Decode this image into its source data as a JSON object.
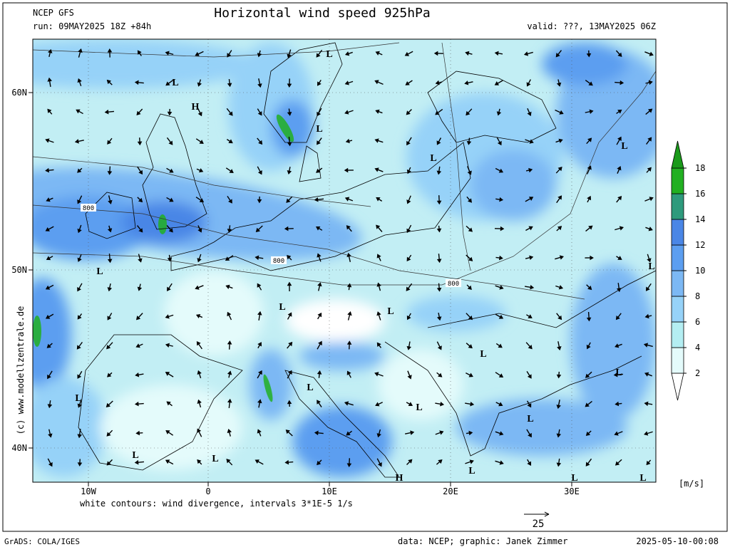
{
  "header": {
    "model": "NCEP GFS",
    "run": "run: 09MAY2025 18Z +84h",
    "title": "Horizontal wind speed 925hPa",
    "valid": "valid: ???, 13MAY2025 06Z"
  },
  "map": {
    "lat_labels": [
      "60N",
      "50N",
      "40N"
    ],
    "lon_labels": [
      "10W",
      "0",
      "10E",
      "20E",
      "30E"
    ],
    "pressure_centers": [
      "L",
      "H",
      "L",
      "L",
      "L",
      "L",
      "L",
      "L",
      "L",
      "L",
      "L",
      "L",
      "L",
      "L",
      "L",
      "L",
      "L",
      "H",
      "L",
      "L",
      "L",
      "L"
    ],
    "contour_labels": [
      "800",
      "800",
      "800"
    ],
    "side_credit": "(c) www.modellzentrale.de",
    "caption": "white contours: wind divergence, intervals 3*1E-5 1/s"
  },
  "colorbar": {
    "unit": "[m/s]",
    "levels": [
      2,
      4,
      6,
      8,
      10,
      12,
      14,
      16,
      18
    ],
    "colors": [
      "#ffffff",
      "#e4fbfb",
      "#b4eef2",
      "#96d2f8",
      "#7cb8f4",
      "#5c9ef0",
      "#4a86e6",
      "#2e9a7c",
      "#22b022",
      "#1a9a1a"
    ]
  },
  "reference_vector": {
    "value": 25
  },
  "footer": {
    "software": "GrADS: COLA/IGES",
    "credit": "data: NCEP; graphic: Janek Zimmer",
    "timestamp": "2025-05-10-00:08"
  }
}
